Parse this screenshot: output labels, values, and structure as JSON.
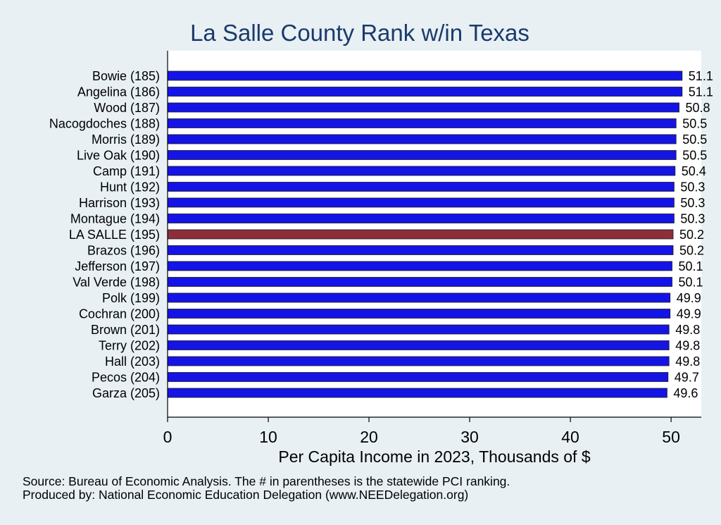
{
  "chart_data": {
    "type": "bar",
    "orientation": "horizontal",
    "title": "La Salle County Rank w/in Texas",
    "xlabel": "Per Capita Income in 2023, Thousands of $",
    "xlim": [
      0,
      53
    ],
    "xticks": [
      0,
      10,
      20,
      30,
      40,
      50
    ],
    "grid": false,
    "legend": "none",
    "categories": [
      "Bowie (185)",
      "Angelina (186)",
      "Wood (187)",
      "Nacogdoches (188)",
      "Morris (189)",
      "Live Oak (190)",
      "Camp (191)",
      "Hunt (192)",
      "Harrison (193)",
      "Montague (194)",
      "LA SALLE (195)",
      "Brazos (196)",
      "Jefferson (197)",
      "Val Verde (198)",
      "Polk (199)",
      "Cochran (200)",
      "Brown (201)",
      "Terry (202)",
      "Hall (203)",
      "Pecos (204)",
      "Garza (205)"
    ],
    "values": [
      51.1,
      51.1,
      50.8,
      50.5,
      50.5,
      50.5,
      50.4,
      50.3,
      50.3,
      50.3,
      50.2,
      50.2,
      50.1,
      50.1,
      49.9,
      49.9,
      49.8,
      49.8,
      49.8,
      49.7,
      49.6
    ],
    "value_labels": [
      "51.1",
      "51.1",
      "50.8",
      "50.5",
      "50.5",
      "50.5",
      "50.4",
      "50.3",
      "50.3",
      "50.3",
      "50.2",
      "50.2",
      "50.1",
      "50.1",
      "49.9",
      "49.9",
      "49.8",
      "49.8",
      "49.8",
      "49.7",
      "49.6"
    ],
    "highlight_index": 10,
    "colors": {
      "bar": "#1414e6",
      "highlight": "#8c2e3a",
      "axis": "#000000"
    }
  },
  "notes": {
    "source": "Source: Bureau of Economic Analysis. The # in parentheses is the statewide PCI ranking.",
    "producer": "Produced by: National Economic Education Delegation (www.NEEDelegation.org)"
  }
}
